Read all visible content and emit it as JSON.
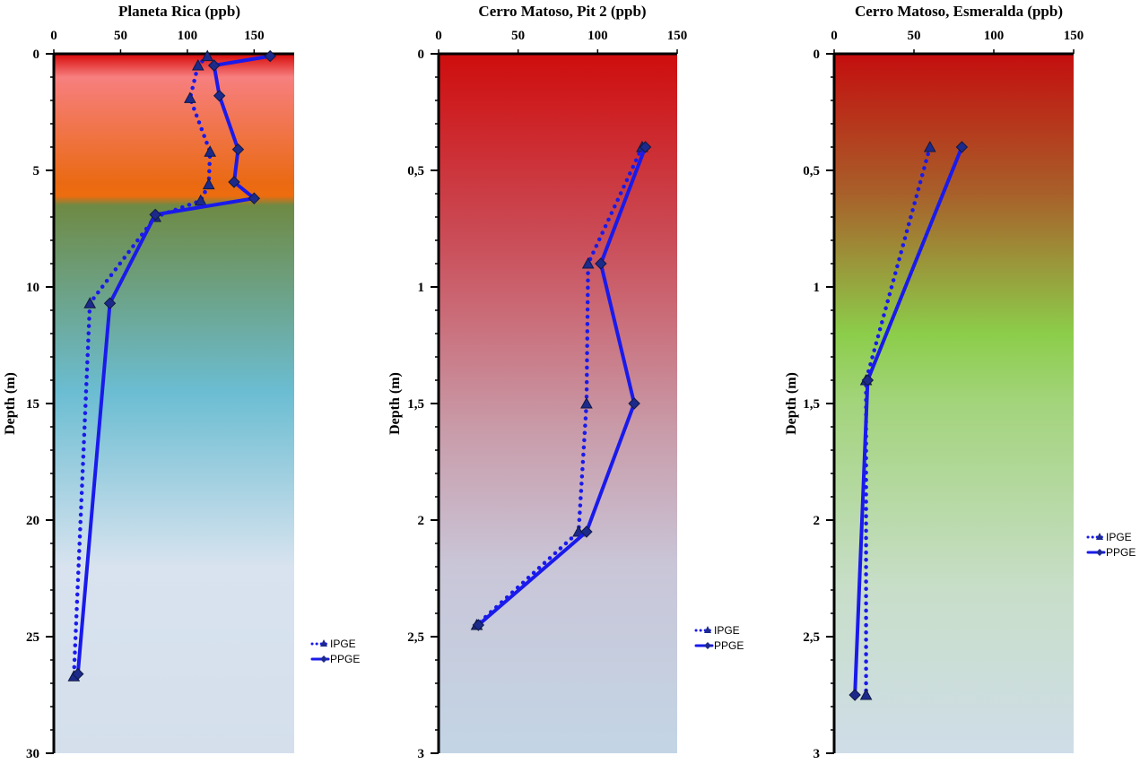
{
  "chart_data": [
    {
      "type": "line",
      "title": "Planeta Rica  (ppb)",
      "xlabel": "Planeta Rica  (ppb)",
      "ylabel": "Depth (m)",
      "xlim": [
        0,
        180
      ],
      "ylim": [
        0,
        30
      ],
      "x_ticks": [
        0,
        50,
        100,
        150
      ],
      "x_tick_labels": [
        "0",
        "50",
        "100",
        "150"
      ],
      "y_ticks": [
        0,
        5,
        10,
        15,
        20,
        25,
        30
      ],
      "y_tick_labels": [
        "0",
        "5",
        "10",
        "15",
        "20",
        "25",
        "30"
      ],
      "background_stops": [
        {
          "depth": 0,
          "color": "#d80808"
        },
        {
          "depth": 1,
          "color": "#f77f7f"
        },
        {
          "depth": 5.5,
          "color": "#ea6a14"
        },
        {
          "depth": 6.1,
          "color": "#ed6c0e"
        },
        {
          "depth": 6.5,
          "color": "#6e8a44"
        },
        {
          "depth": 14.5,
          "color": "#6bbdd2"
        },
        {
          "depth": 22,
          "color": "#d8e3ef"
        },
        {
          "depth": 30,
          "color": "#d4dfeb"
        }
      ],
      "series": [
        {
          "name": "IPGE",
          "style": "dotted",
          "marker": "triangle",
          "x": [
            115,
            108,
            102,
            117,
            116,
            110,
            76,
            27,
            15
          ],
          "y": [
            0.1,
            0.5,
            1.9,
            4.2,
            5.6,
            6.3,
            7,
            10.7,
            26.7
          ]
        },
        {
          "name": "PPGE",
          "style": "solid",
          "marker": "diamond",
          "x": [
            162,
            120,
            124,
            138,
            135,
            150,
            76,
            42,
            18
          ],
          "y": [
            0.1,
            0.5,
            1.8,
            4.1,
            5.5,
            6.2,
            6.9,
            10.7,
            26.6
          ]
        }
      ],
      "legend": [
        "IPGE",
        "PPGE"
      ],
      "legend_position": "right"
    },
    {
      "type": "line",
      "title": "Cerro Matoso, Pit 2 (ppb)",
      "xlabel": "Cerro Matoso, Pit 2 (ppb)",
      "ylabel": "Depth (m)",
      "xlim": [
        0,
        150
      ],
      "ylim": [
        0,
        3
      ],
      "x_ticks": [
        0,
        50,
        100,
        150
      ],
      "x_tick_labels": [
        "0",
        "50",
        "100",
        "150"
      ],
      "y_ticks": [
        0,
        0.5,
        1,
        1.5,
        2,
        2.5,
        3
      ],
      "y_tick_labels": [
        "0",
        "0,5",
        "1",
        "1,5",
        "2",
        "2,5",
        "3"
      ],
      "background_stops": [
        {
          "depth": 0,
          "color": "#cf0d0d"
        },
        {
          "depth": 0.8,
          "color": "#ca4d58"
        },
        {
          "depth": 1.6,
          "color": "#c99aa8"
        },
        {
          "depth": 2.2,
          "color": "#c9c6d8"
        },
        {
          "depth": 3,
          "color": "#c3d5e5"
        }
      ],
      "series": [
        {
          "name": "IPGE",
          "style": "dotted",
          "marker": "triangle",
          "x": [
            128,
            94,
            93,
            88,
            24
          ],
          "y": [
            0.4,
            0.9,
            1.5,
            2.05,
            2.45
          ]
        },
        {
          "name": "PPGE",
          "style": "solid",
          "marker": "diamond",
          "x": [
            130,
            102,
            123,
            93,
            25
          ],
          "y": [
            0.4,
            0.9,
            1.5,
            2.05,
            2.45
          ]
        }
      ],
      "legend": [
        "IPGE",
        "PPGE"
      ],
      "legend_position": "right"
    },
    {
      "type": "line",
      "title": "Cerro Matoso, Esmeralda (ppb)",
      "xlabel": "Cerro Matoso, Esmeralda (ppb)",
      "ylabel": "Depth (m)",
      "xlim": [
        0,
        150
      ],
      "ylim": [
        0,
        3
      ],
      "x_ticks": [
        0,
        50,
        100,
        150
      ],
      "x_tick_labels": [
        "0",
        "50",
        "100",
        "150"
      ],
      "y_ticks": [
        0,
        0.5,
        1,
        1.5,
        2,
        2.5,
        3
      ],
      "y_tick_labels": [
        "0",
        "0,5",
        "1",
        "1,5",
        "2",
        "2,5",
        "3"
      ],
      "background_stops": [
        {
          "depth": 0,
          "color": "#c40e0e"
        },
        {
          "depth": 0.6,
          "color": "#a8602a"
        },
        {
          "depth": 1.2,
          "color": "#8ccd4a"
        },
        {
          "depth": 1.5,
          "color": "#a3d47c"
        },
        {
          "depth": 2.3,
          "color": "#c8dec9"
        },
        {
          "depth": 3,
          "color": "#cfdde8"
        }
      ],
      "series": [
        {
          "name": "IPGE",
          "style": "dotted",
          "marker": "triangle",
          "x": [
            60,
            20,
            20
          ],
          "y": [
            0.4,
            1.4,
            2.75
          ]
        },
        {
          "name": "PPGE",
          "style": "solid",
          "marker": "diamond",
          "x": [
            80,
            21,
            13
          ],
          "y": [
            0.4,
            1.4,
            2.75
          ]
        }
      ],
      "legend": [
        "IPGE",
        "PPGE"
      ],
      "legend_position": "right"
    }
  ]
}
